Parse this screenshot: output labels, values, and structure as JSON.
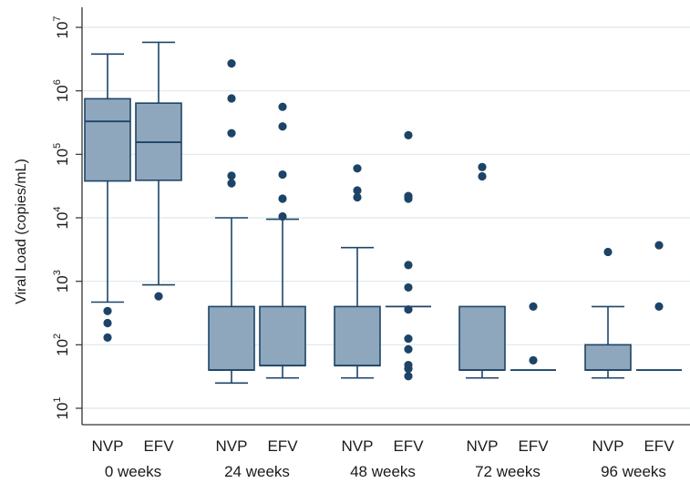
{
  "chart_data": {
    "type": "box",
    "ylabel": "Viral Load (copies/mL)",
    "xlabel": "",
    "title": "",
    "y_scale": "log",
    "ylim": [
      10,
      10000000
    ],
    "y_ticks": [
      {
        "value": 10,
        "base": "10",
        "exp": "1"
      },
      {
        "value": 100,
        "base": "10",
        "exp": "2"
      },
      {
        "value": 1000,
        "base": "10",
        "exp": "3"
      },
      {
        "value": 10000,
        "base": "10",
        "exp": "4"
      },
      {
        "value": 100000,
        "base": "10",
        "exp": "5"
      },
      {
        "value": 1000000,
        "base": "10",
        "exp": "6"
      },
      {
        "value": 10000000,
        "base": "10",
        "exp": "7"
      }
    ],
    "grid": true,
    "box_color": "#8fa7bc",
    "line_color": "#1d4467",
    "grid_color": "#dde8ee",
    "groups": [
      {
        "label": "0 weeks",
        "categories": [
          {
            "label": "NVP",
            "q1": 38000,
            "median": 330000,
            "q3": 750000,
            "whisker_low": 470,
            "whisker_high": 3800000,
            "outliers": [
              340,
              220,
              130
            ]
          },
          {
            "label": "EFV",
            "q1": 39000,
            "median": 155000,
            "q3": 640000,
            "whisker_low": 880,
            "whisker_high": 5800000,
            "outliers": [
              580
            ]
          }
        ]
      },
      {
        "label": "24 weeks",
        "categories": [
          {
            "label": "NVP",
            "q1": 40,
            "median": 40,
            "q3": 400,
            "whisker_low": 25,
            "whisker_high": 10000,
            "outliers": [
              2700000,
              760000,
              215000,
              46000,
              35000
            ]
          },
          {
            "label": "EFV",
            "q1": 47,
            "median": 47,
            "q3": 400,
            "whisker_low": 30,
            "whisker_high": 9500,
            "outliers": [
              560000,
              275000,
              48000,
              20000,
              10500
            ]
          }
        ]
      },
      {
        "label": "48 weeks",
        "categories": [
          {
            "label": "NVP",
            "q1": 47,
            "median": 47,
            "q3": 400,
            "whisker_low": 30,
            "whisker_high": 3400,
            "outliers": [
              60000,
              27000,
              21000
            ]
          },
          {
            "label": "EFV",
            "q1": 400,
            "median": 400,
            "q3": 400,
            "whisker_low": 400,
            "whisker_high": 400,
            "outliers": [
              200000,
              22000,
              20000,
              1800,
              800,
              360,
              125,
              85,
              48,
              42,
              32
            ]
          }
        ]
      },
      {
        "label": "72 weeks",
        "categories": [
          {
            "label": "NVP",
            "q1": 40,
            "median": 40,
            "q3": 400,
            "whisker_low": 30,
            "whisker_high": 400,
            "outliers": [
              63000,
              45000
            ]
          },
          {
            "label": "EFV",
            "q1": 40,
            "median": 40,
            "q3": 40,
            "whisker_low": 40,
            "whisker_high": 40,
            "outliers": [
              400,
              57
            ]
          }
        ]
      },
      {
        "label": "96 weeks",
        "categories": [
          {
            "label": "NVP",
            "q1": 40,
            "median": 40,
            "q3": 100,
            "whisker_low": 30,
            "whisker_high": 400,
            "outliers": [
              2900
            ]
          },
          {
            "label": "EFV",
            "q1": 40,
            "median": 40,
            "q3": 40,
            "whisker_low": 40,
            "whisker_high": 40,
            "outliers": [
              3700,
              400
            ]
          }
        ]
      }
    ]
  }
}
